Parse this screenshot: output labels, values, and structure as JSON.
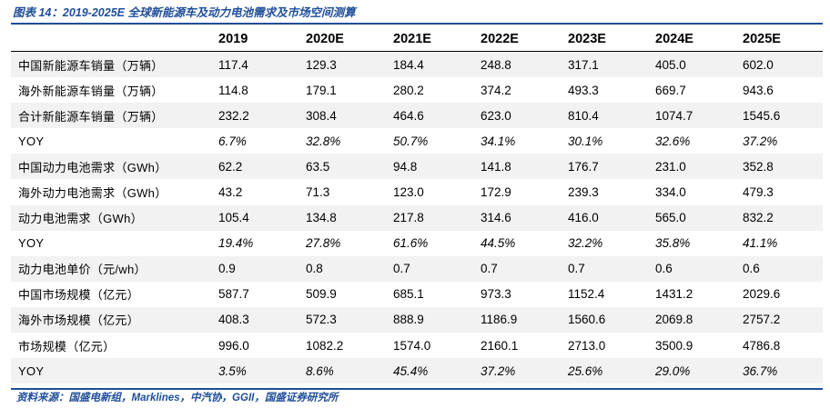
{
  "caption": "图表 14：2019-2025E 全球新能源车及动力电池需求及市场空间测算",
  "columns": [
    "2019",
    "2020E",
    "2021E",
    "2022E",
    "2023E",
    "2024E",
    "2025E"
  ],
  "rows": [
    {
      "label": "中国新能源车销量（万辆）",
      "values": [
        "117.4",
        "129.3",
        "184.4",
        "248.8",
        "317.1",
        "405.0",
        "602.0"
      ],
      "shaded": true,
      "yoy": false
    },
    {
      "label": "海外新能源车销量（万辆）",
      "values": [
        "114.8",
        "179.1",
        "280.2",
        "374.2",
        "493.3",
        "669.7",
        "943.6"
      ],
      "shaded": false,
      "yoy": false
    },
    {
      "label": "合计新能源车销量（万辆）",
      "values": [
        "232.2",
        "308.4",
        "464.6",
        "623.0",
        "810.4",
        "1074.7",
        "1545.6"
      ],
      "shaded": true,
      "yoy": false
    },
    {
      "label": "YOY",
      "values": [
        "6.7%",
        "32.8%",
        "50.7%",
        "34.1%",
        "30.1%",
        "32.6%",
        "37.2%"
      ],
      "shaded": false,
      "yoy": true
    },
    {
      "label": "中国动力电池需求（GWh）",
      "values": [
        "62.2",
        "63.5",
        "94.8",
        "141.8",
        "176.7",
        "231.0",
        "352.8"
      ],
      "shaded": true,
      "yoy": false
    },
    {
      "label": "海外动力电池需求（GWh）",
      "values": [
        "43.2",
        "71.3",
        "123.0",
        "172.9",
        "239.3",
        "334.0",
        "479.3"
      ],
      "shaded": false,
      "yoy": false
    },
    {
      "label": "动力电池需求（GWh）",
      "values": [
        "105.4",
        "134.8",
        "217.8",
        "314.6",
        "416.0",
        "565.0",
        "832.2"
      ],
      "shaded": true,
      "yoy": false
    },
    {
      "label": "YOY",
      "values": [
        "19.4%",
        "27.8%",
        "61.6%",
        "44.5%",
        "32.2%",
        "35.8%",
        "41.1%"
      ],
      "shaded": false,
      "yoy": true
    },
    {
      "label": "动力电池单价（元/wh）",
      "values": [
        "0.9",
        "0.8",
        "0.7",
        "0.7",
        "0.7",
        "0.6",
        "0.6"
      ],
      "shaded": true,
      "yoy": false
    },
    {
      "label": "中国市场规模（亿元）",
      "values": [
        "587.7",
        "509.9",
        "685.1",
        "973.3",
        "1152.4",
        "1431.2",
        "2029.6"
      ],
      "shaded": false,
      "yoy": false
    },
    {
      "label": "海外市场规模（亿元）",
      "values": [
        "408.3",
        "572.3",
        "888.9",
        "1186.9",
        "1560.6",
        "2069.8",
        "2757.2"
      ],
      "shaded": true,
      "yoy": false
    },
    {
      "label": "市场规模（亿元）",
      "values": [
        "996.0",
        "1082.2",
        "1574.0",
        "2160.1",
        "2713.0",
        "3500.9",
        "4786.8"
      ],
      "shaded": false,
      "yoy": false
    },
    {
      "label": "YOY",
      "values": [
        "3.5%",
        "8.6%",
        "45.4%",
        "37.2%",
        "25.6%",
        "29.0%",
        "36.7%"
      ],
      "shaded": true,
      "yoy": true
    }
  ],
  "source": "资料来源：国盛电新组，Marklines，中汽协，GGII，国盛证券研究所",
  "colors": {
    "accent": "#1f4e9a",
    "row_shade": "#f2f2f2",
    "text": "#000000"
  }
}
